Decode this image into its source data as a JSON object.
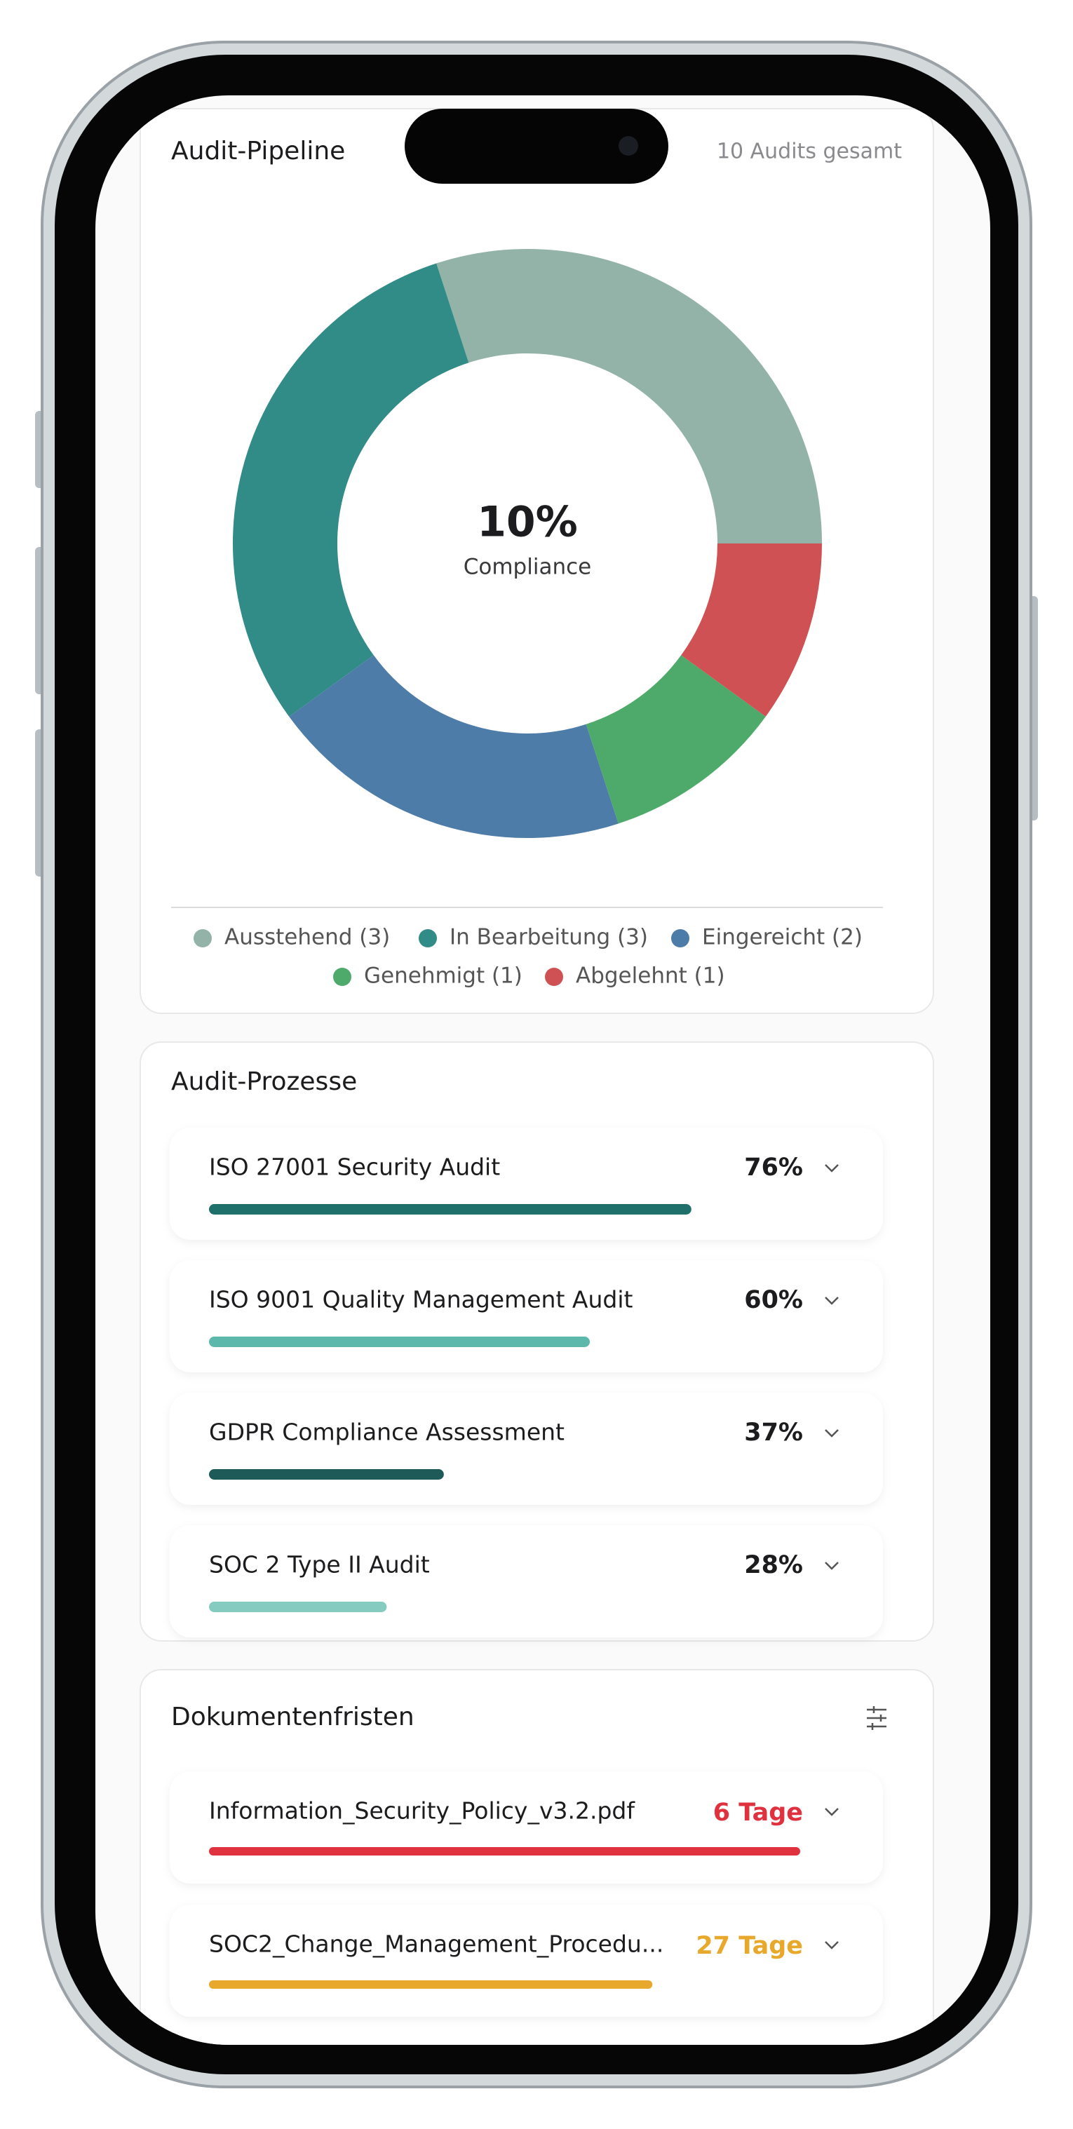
{
  "header": {
    "pipeline_title": "Audit-Pipeline",
    "pipeline_total": "10 Audits gesamt"
  },
  "chart_data": {
    "type": "donut",
    "center_value": "10%",
    "center_label": "Compliance",
    "categories": [
      "Ausstehend (3)",
      "In Bearbeitung (3)",
      "Eingereicht (2)",
      "Genehmigt (1)",
      "Abgelehnt (1)"
    ],
    "values": [
      3,
      3,
      2,
      1,
      1
    ],
    "colors": [
      "#93b3a9",
      "#318b86",
      "#4e7ca8",
      "#4eaa6a",
      "#cf5153"
    ]
  },
  "processes": {
    "title": "Audit-Prozesse",
    "items": [
      {
        "name": "ISO 27001 Security Audit",
        "value": 76,
        "value_label": "76%",
        "color": "#1f6f6b"
      },
      {
        "name": "ISO 9001 Quality Management Audit",
        "value": 60,
        "value_label": "60%",
        "color": "#5bb8aa"
      },
      {
        "name": "GDPR Compliance Assessment",
        "value": 37,
        "value_label": "37%",
        "color": "#1d5a58"
      },
      {
        "name": "SOC 2 Type II Audit",
        "value": 28,
        "value_label": "28%",
        "color": "#86cbbf"
      }
    ]
  },
  "deadlines": {
    "title": "Dokumentenfristen",
    "items": [
      {
        "name": "Information_Security_Policy_v3.2.pdf",
        "label": "6 Tage",
        "value": 100,
        "color": "#e0313f"
      },
      {
        "name": "SOC2_Change_Management_Procedu...",
        "label": "27 Tage",
        "value": 75,
        "color": "#e8a82c"
      }
    ]
  }
}
